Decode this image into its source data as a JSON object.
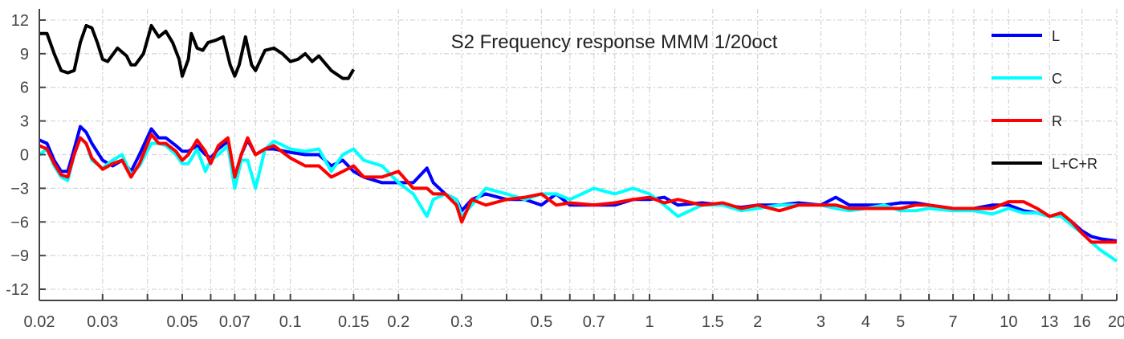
{
  "chart_data": {
    "type": "line",
    "title": "S2  Frequency response MMM 1/20oct",
    "xlabel": "",
    "ylabel": "",
    "xscale": "log",
    "xlim": [
      0.02,
      20
    ],
    "ylim": [
      -13,
      13
    ],
    "grid": true,
    "legend_position": "top-right",
    "x_ticks": [
      0.02,
      0.03,
      0.05,
      0.07,
      0.1,
      0.15,
      0.2,
      0.3,
      0.5,
      0.7,
      1,
      1.5,
      2,
      3,
      4,
      5,
      7,
      10,
      13,
      16,
      20
    ],
    "x_tick_labels": [
      "0.02",
      "0.03",
      "0.05",
      "0.07",
      "0.1",
      "0.15",
      "0.2",
      "0.3",
      "0.5",
      "0.7",
      "1",
      "1.5",
      "2",
      "3",
      "4",
      "5",
      "7",
      "10",
      "13",
      "16",
      "20"
    ],
    "x_minor_ticks": [
      0.04,
      0.06,
      0.08,
      0.09,
      0.4,
      0.6,
      0.8,
      0.9,
      6,
      8,
      9
    ],
    "y_ticks": [
      12,
      9,
      6,
      3,
      0,
      -3,
      -6,
      -9,
      -12
    ],
    "y_tick_labels": [
      "12",
      "9",
      "6",
      "3",
      "0",
      "−3",
      "−6",
      "−9",
      "-12"
    ],
    "x": [
      0.02,
      0.021,
      0.022,
      0.023,
      0.024,
      0.025,
      0.026,
      0.027,
      0.028,
      0.03,
      0.032,
      0.034,
      0.036,
      0.038,
      0.041,
      0.043,
      0.045,
      0.048,
      0.05,
      0.052,
      0.055,
      0.058,
      0.06,
      0.063,
      0.067,
      0.07,
      0.073,
      0.076,
      0.08,
      0.085,
      0.09,
      0.1,
      0.11,
      0.12,
      0.13,
      0.14,
      0.15,
      0.16,
      0.18,
      0.2,
      0.22,
      0.24,
      0.25,
      0.27,
      0.29,
      0.3,
      0.32,
      0.35,
      0.4,
      0.45,
      0.5,
      0.55,
      0.6,
      0.7,
      0.8,
      0.9,
      1,
      1.1,
      1.2,
      1.4,
      1.6,
      1.8,
      2,
      2.3,
      2.6,
      3,
      3.3,
      3.6,
      4,
      4.5,
      5,
      5.5,
      6,
      7,
      8,
      9,
      10,
      11,
      12,
      13,
      14,
      15,
      16,
      17,
      18,
      20
    ],
    "series": [
      {
        "name": "L",
        "color": "#0000ff",
        "values": [
          1.3,
          1,
          -0.5,
          -1.5,
          -1.5,
          0.5,
          2.5,
          2,
          1,
          -0.5,
          -1,
          -0.5,
          -1.5,
          0,
          2.3,
          1.5,
          1.5,
          0.8,
          0.3,
          0.3,
          0.8,
          0,
          -0.3,
          0.5,
          1.2,
          -2,
          0,
          1.3,
          0,
          0.5,
          0.5,
          0.2,
          0,
          0,
          -1,
          -0.5,
          -1.5,
          -2,
          -2.5,
          -2.5,
          -2.5,
          -1.2,
          -2.5,
          -3.5,
          -4,
          -5,
          -4,
          -3.5,
          -4,
          -4,
          -4.5,
          -3.5,
          -4.5,
          -4.5,
          -4.5,
          -4,
          -4,
          -3.8,
          -4.5,
          -4.3,
          -4.5,
          -4.7,
          -4.5,
          -4.5,
          -4.3,
          -4.5,
          -3.8,
          -4.5,
          -4.5,
          -4.5,
          -4.3,
          -4.3,
          -4.5,
          -4.8,
          -4.8,
          -4.5,
          -4.5,
          -5,
          -5.2,
          -5.5,
          -5.3,
          -6,
          -6.8,
          -7.3,
          -7.5,
          -7.7
        ]
      },
      {
        "name": "C",
        "color": "#00ffff",
        "values": [
          0,
          0.5,
          -1,
          -2,
          -2.3,
          0,
          1.5,
          1,
          -0.5,
          -1.2,
          -0.5,
          0,
          -1.8,
          -1,
          1,
          1,
          0.8,
          0,
          -0.8,
          -0.8,
          0.5,
          -1.5,
          -0.5,
          0,
          0.8,
          -3,
          -0.5,
          -0.5,
          -3,
          0.5,
          1.2,
          0.5,
          0.3,
          0.5,
          -1.5,
          0,
          0.5,
          -0.5,
          -1,
          -2.5,
          -3.5,
          -5.5,
          -4,
          -3.5,
          -4,
          -5.5,
          -4.5,
          -3,
          -3.5,
          -4,
          -3.5,
          -3.5,
          -4,
          -3,
          -3.5,
          -3,
          -3.5,
          -4.5,
          -5.5,
          -4.5,
          -4.5,
          -5,
          -4.8,
          -4.5,
          -4.5,
          -4.5,
          -4.8,
          -5,
          -4.8,
          -4.5,
          -5,
          -5,
          -4.8,
          -5,
          -5,
          -5.3,
          -4.8,
          -5.2,
          -5.2,
          -5.5,
          -5.5,
          -6.3,
          -7,
          -7.8,
          -8.5,
          -9.5
        ]
      },
      {
        "name": "R",
        "color": "#ff0000",
        "values": [
          0.8,
          0.5,
          -0.8,
          -1.8,
          -2,
          0,
          1.5,
          1,
          -0.3,
          -1.3,
          -0.8,
          -0.5,
          -2,
          -0.8,
          1.8,
          1,
          1,
          0.3,
          -0.5,
          0,
          1.3,
          0.3,
          -0.8,
          0.8,
          1.5,
          -2,
          0,
          1.5,
          0,
          0.5,
          0.8,
          -0.3,
          -1,
          -1,
          -2,
          -1.5,
          -1,
          -2,
          -2,
          -1.5,
          -3,
          -3,
          -3.5,
          -3.5,
          -4.5,
          -6,
          -4,
          -4.5,
          -4,
          -3.8,
          -3.5,
          -4.5,
          -4.3,
          -4.5,
          -4.3,
          -4,
          -3.8,
          -4.3,
          -4,
          -4.5,
          -4.3,
          -4.8,
          -4.5,
          -5,
          -4.5,
          -4.5,
          -4.5,
          -4.8,
          -4.8,
          -4.8,
          -4.8,
          -4.5,
          -4.5,
          -4.8,
          -4.8,
          -4.8,
          -4.2,
          -4.2,
          -4.8,
          -5.5,
          -5.2,
          -6,
          -7,
          -7.8,
          -7.8,
          -7.8
        ]
      },
      {
        "name": "L+C+R",
        "color": "#000000",
        "x": [
          0.02,
          0.021,
          0.022,
          0.023,
          0.024,
          0.025,
          0.026,
          0.027,
          0.028,
          0.029,
          0.03,
          0.031,
          0.033,
          0.035,
          0.036,
          0.037,
          0.039,
          0.041,
          0.043,
          0.045,
          0.047,
          0.049,
          0.05,
          0.052,
          0.053,
          0.055,
          0.057,
          0.059,
          0.062,
          0.065,
          0.068,
          0.07,
          0.072,
          0.075,
          0.078,
          0.08,
          0.085,
          0.09,
          0.095,
          0.1,
          0.105,
          0.11,
          0.115,
          0.12,
          0.13,
          0.14,
          0.145,
          0.15
        ],
        "values": [
          10.8,
          10.8,
          9,
          7.5,
          7.3,
          7.5,
          10,
          11.5,
          11.3,
          10,
          8.5,
          8.3,
          9.5,
          8.8,
          8,
          8,
          9,
          11.5,
          10.5,
          11,
          10,
          8.5,
          7,
          8.5,
          10.8,
          9.5,
          9.3,
          10,
          10.2,
          10.5,
          8,
          7,
          8,
          10.5,
          8,
          7.5,
          9.3,
          9.5,
          9,
          8.3,
          8.5,
          9,
          8.3,
          8.8,
          7.5,
          6.8,
          6.8,
          7.6
        ]
      }
    ]
  }
}
